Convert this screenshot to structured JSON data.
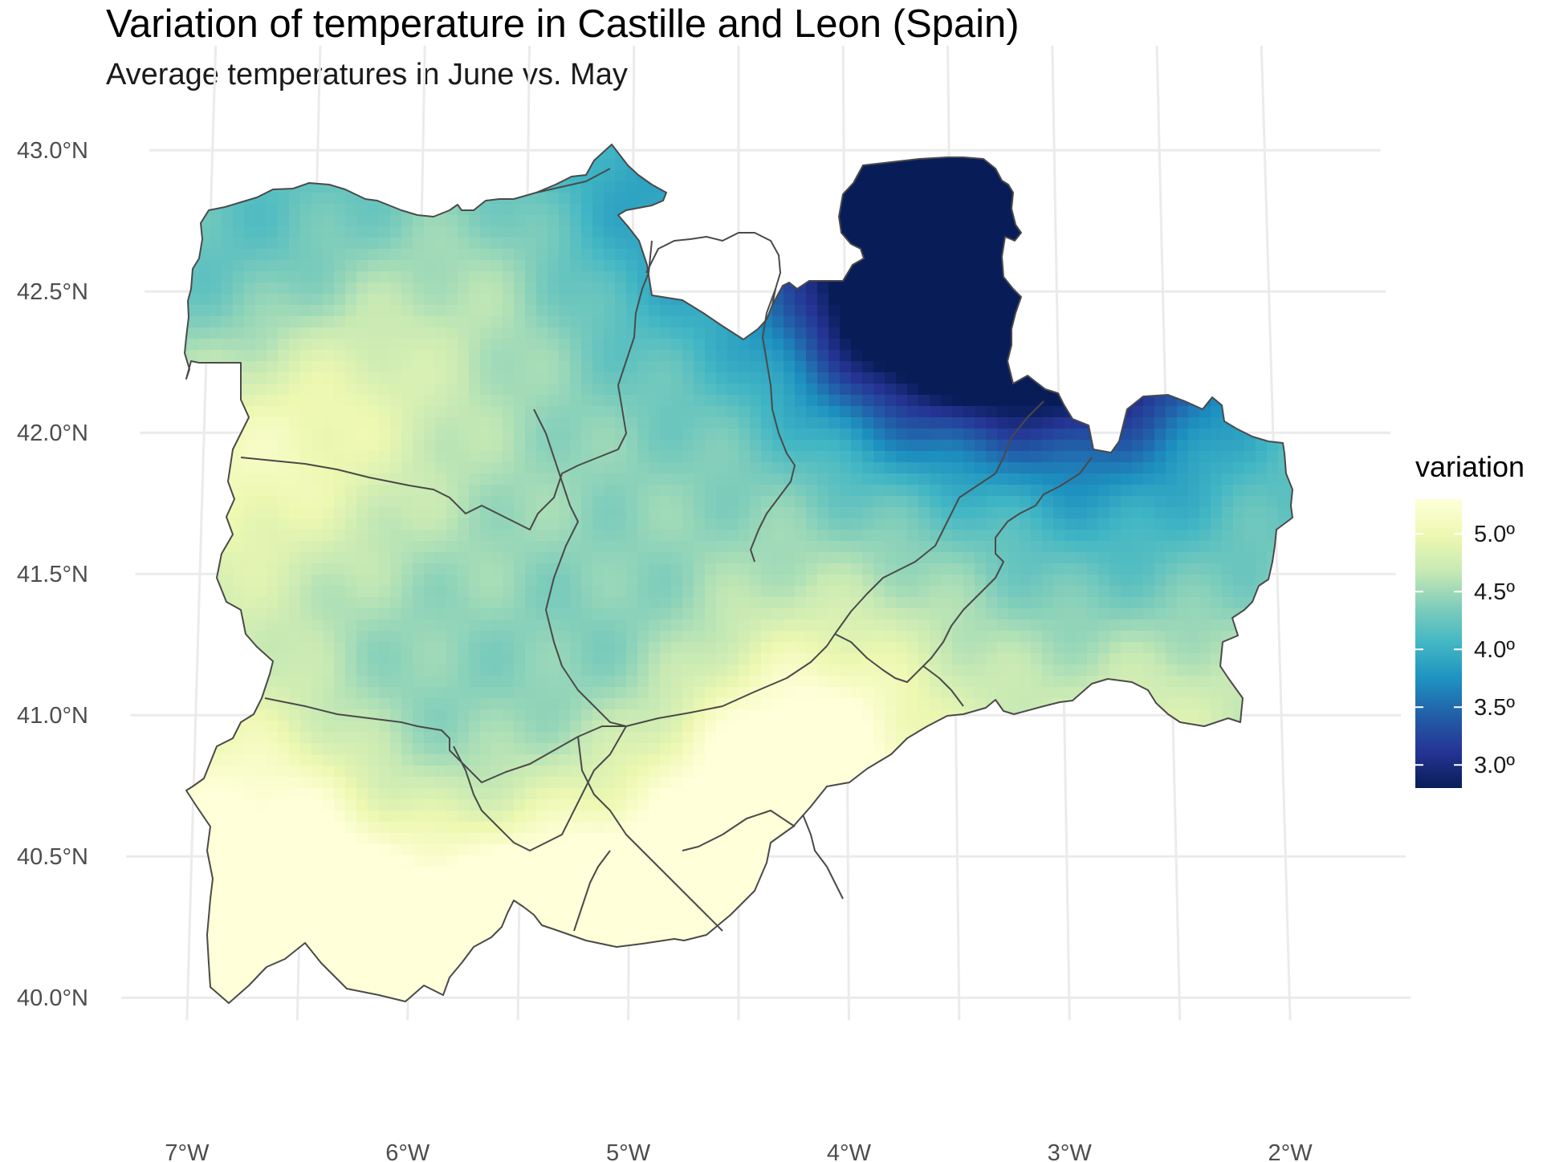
{
  "title": "Variation of temperature in Castille and Leon (Spain)",
  "subtitle": "Average temperatures in June vs. May",
  "axes": {
    "x_ticks": [
      {
        "lon": -7,
        "label": "7°W"
      },
      {
        "lon": -6,
        "label": "6°W"
      },
      {
        "lon": -5,
        "label": "5°W"
      },
      {
        "lon": -4,
        "label": "4°W"
      },
      {
        "lon": -3,
        "label": "3°W"
      },
      {
        "lon": -2,
        "label": "2°W"
      }
    ],
    "y_ticks": [
      {
        "lat": 43.0,
        "label": "43.0°N"
      },
      {
        "lat": 42.5,
        "label": "42.5°N"
      },
      {
        "lat": 42.0,
        "label": "42.0°N"
      },
      {
        "lat": 41.5,
        "label": "41.5°N"
      },
      {
        "lat": 41.0,
        "label": "41.0°N"
      },
      {
        "lat": 40.5,
        "label": "40.5°N"
      },
      {
        "lat": 40.0,
        "label": "40.0°N"
      }
    ]
  },
  "legend": {
    "title": "variation",
    "range": [
      2.8,
      5.3
    ],
    "labels": [
      {
        "value": 5.0,
        "label": "5.0º"
      },
      {
        "value": 4.5,
        "label": "4.5º"
      },
      {
        "value": 4.0,
        "label": "4.0º"
      },
      {
        "value": 3.5,
        "label": "3.5º"
      },
      {
        "value": 3.0,
        "label": "3.0º"
      }
    ],
    "colors": [
      "#081d58",
      "#253494",
      "#225ea8",
      "#1d91c0",
      "#41b6c4",
      "#7fcdbb",
      "#c7e9b4",
      "#edf8b1",
      "#ffffd9"
    ]
  },
  "colors": {
    "grid": "#ebebeb",
    "border": "#4a4a4a",
    "background": "#ffffff"
  }
}
